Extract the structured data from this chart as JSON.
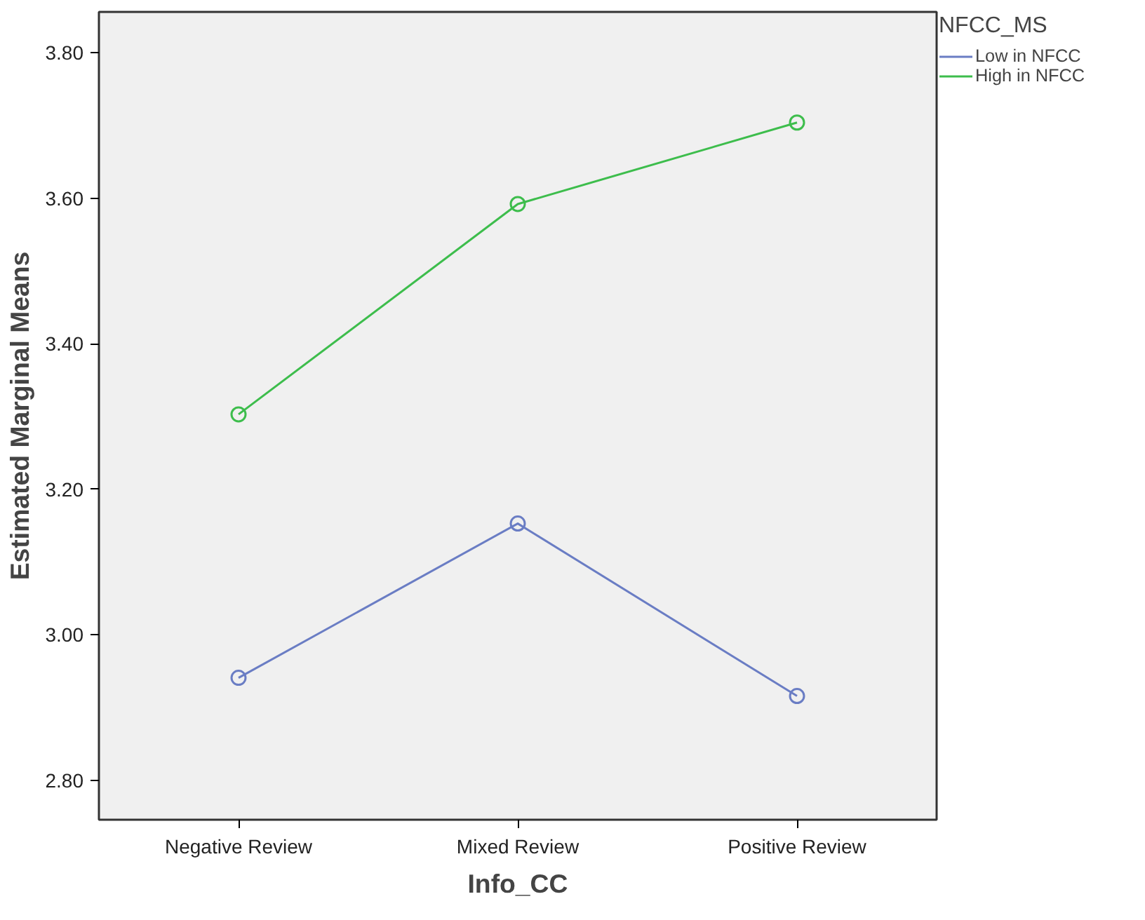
{
  "chart_data": {
    "type": "line",
    "xlabel": "Info_CC",
    "ylabel": "Estimated Marginal Means",
    "legend_title": "NFCC_MS",
    "categories": [
      "Negative Review",
      "Mixed Review",
      "Positive Review"
    ],
    "series": [
      {
        "name": "Low in NFCC",
        "color": "#6a7dc4",
        "values": [
          2.941,
          3.153,
          2.916
        ]
      },
      {
        "name": "High in NFCC",
        "color": "#3dbd4c",
        "values": [
          3.303,
          3.592,
          3.704
        ]
      }
    ],
    "ylim": [
      2.746,
      3.856
    ],
    "yticks": [
      {
        "value": 2.8,
        "label": "2.80"
      },
      {
        "value": 3.0,
        "label": "3.00"
      },
      {
        "value": 3.2,
        "label": "3.20"
      },
      {
        "value": 3.4,
        "label": "3.40"
      },
      {
        "value": 3.6,
        "label": "3.60"
      },
      {
        "value": 3.8,
        "label": "3.80"
      }
    ],
    "grid": false,
    "legend": "top right",
    "marker": "circle",
    "line_style": "solid"
  }
}
